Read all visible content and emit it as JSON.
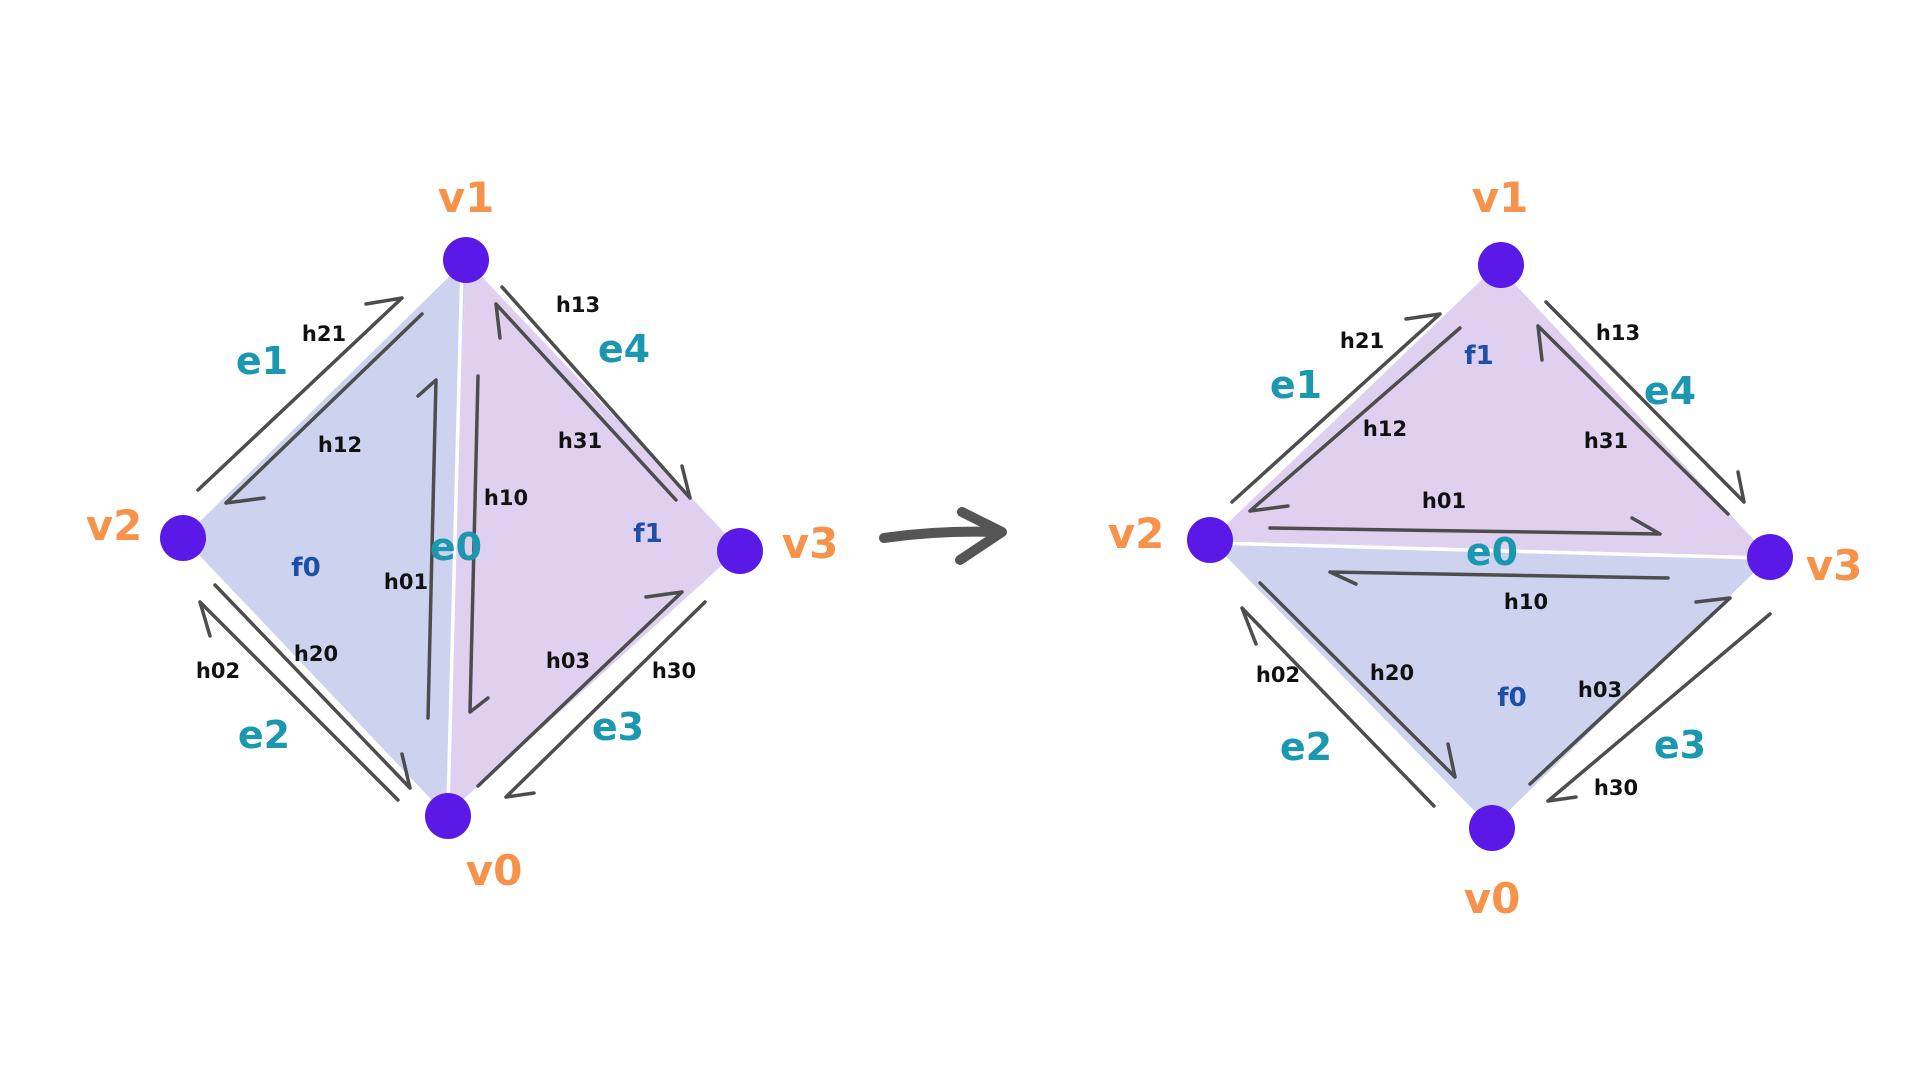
{
  "colors": {
    "vertex_fill": "#5a19e6",
    "vertex_label": "#f6924a",
    "edge_label": "#1b97b0",
    "halfedge_label": "#111111",
    "face_label": "#1d4fa8",
    "face_f0": "#cdd3ef",
    "face_f1": "#dfd0ef",
    "arrow": "#4d4d4d",
    "transition_arrow": "#555555"
  },
  "left": {
    "vertices": {
      "v0": "v0",
      "v1": "v1",
      "v2": "v2",
      "v3": "v3"
    },
    "edges": {
      "e0": "e0",
      "e1": "e1",
      "e2": "e2",
      "e3": "e3",
      "e4": "e4"
    },
    "faces": {
      "f0": "f0",
      "f1": "f1"
    },
    "halfedges": {
      "h01": "h01",
      "h10": "h10",
      "h12": "h12",
      "h21": "h21",
      "h20": "h20",
      "h02": "h02",
      "h13": "h13",
      "h31": "h31",
      "h03": "h03",
      "h30": "h30"
    }
  },
  "right": {
    "vertices": {
      "v0": "v0",
      "v1": "v1",
      "v2": "v2",
      "v3": "v3"
    },
    "edges": {
      "e0": "e0",
      "e1": "e1",
      "e2": "e2",
      "e3": "e3",
      "e4": "e4"
    },
    "faces": {
      "f0": "f0",
      "f1": "f1"
    },
    "halfedges": {
      "h01": "h01",
      "h10": "h10",
      "h12": "h12",
      "h21": "h21",
      "h20": "h20",
      "h02": "h02",
      "h13": "h13",
      "h31": "h31",
      "h03": "h03",
      "h30": "h30"
    }
  },
  "transition_arrow_icon": "right-arrow-icon"
}
